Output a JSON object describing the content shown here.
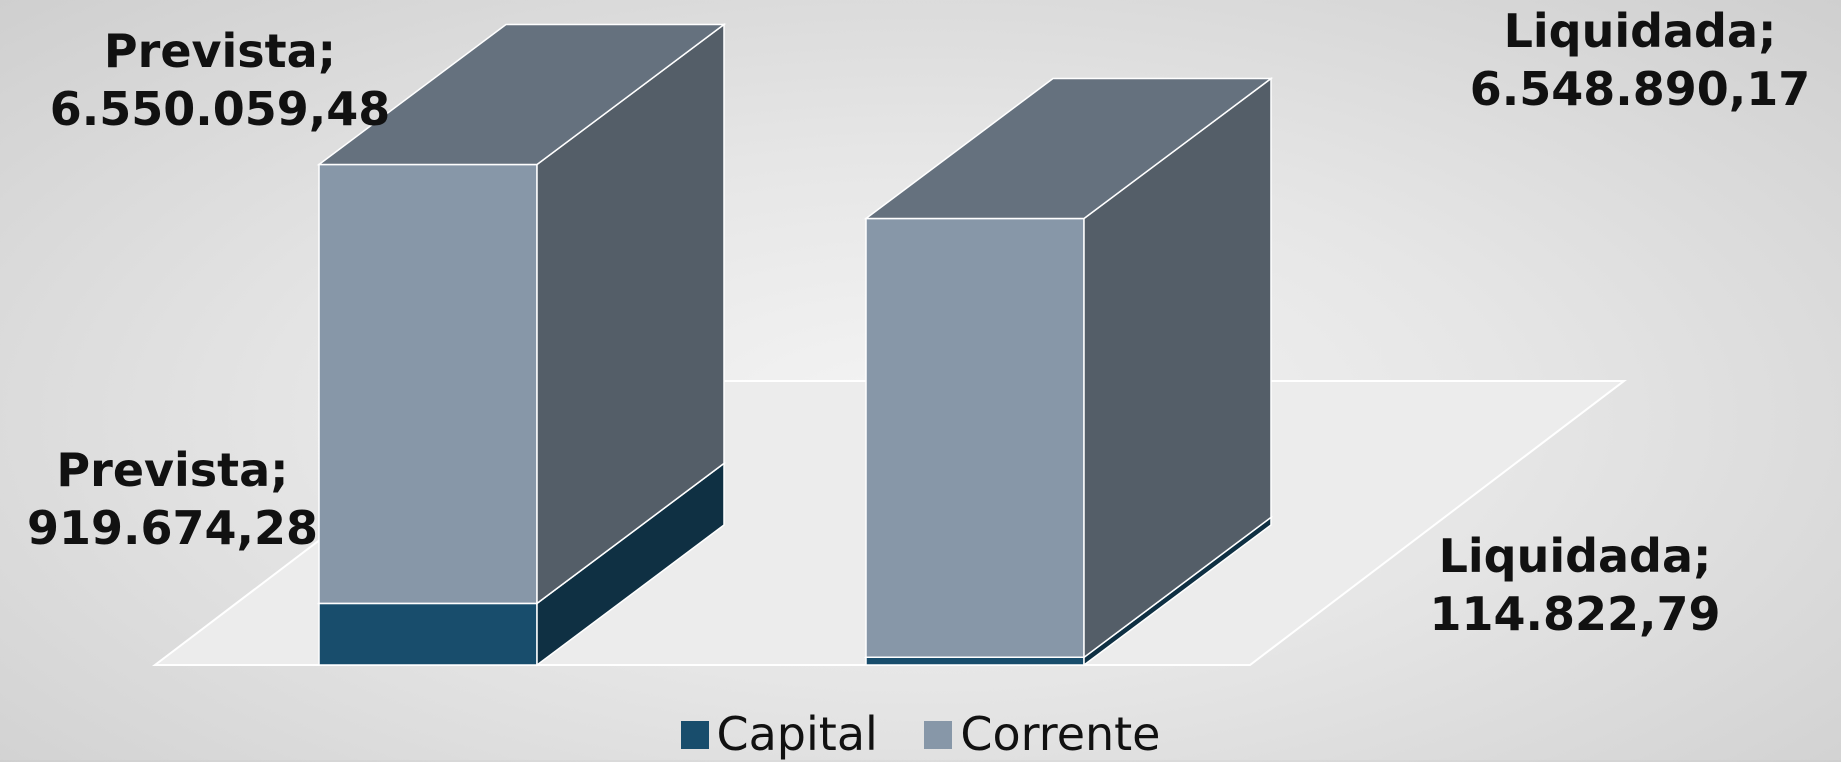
{
  "chart_data": {
    "type": "bar",
    "subtype": "3d-stacked-column",
    "categories": [
      "Prevista",
      "Liquidada"
    ],
    "series": [
      {
        "name": "Capital",
        "color": "#184d6c",
        "values": [
          919674.28,
          114822.79
        ]
      },
      {
        "name": "Corrente",
        "color": "#8797a8",
        "values": [
          6550059.48,
          6548890.17
        ]
      }
    ],
    "data_labels": [
      {
        "series": "Capital",
        "category": "Prevista",
        "line1": "Prevista;",
        "line2": "919.674,28"
      },
      {
        "series": "Corrente",
        "category": "Prevista",
        "line1": "Prevista;",
        "line2": "6.550.059,48"
      },
      {
        "series": "Capital",
        "category": "Liquidada",
        "line1": "Liquidada;",
        "line2": "114.822,79"
      },
      {
        "series": "Corrente",
        "category": "Liquidada",
        "line1": "Liquidada;",
        "line2": "6.548.890,17"
      }
    ],
    "legend": {
      "position": "bottom"
    },
    "axes_visible": false,
    "gridlines": false
  }
}
